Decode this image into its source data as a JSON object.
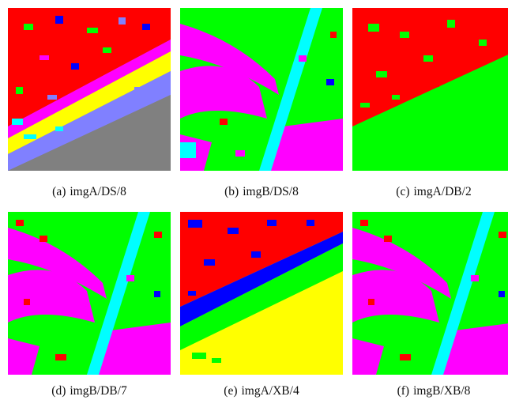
{
  "figure": {
    "panels": [
      {
        "label": "(a)",
        "caption": "imgA/DS/8"
      },
      {
        "label": "(b)",
        "caption": "imgB/DS/8"
      },
      {
        "label": "(c)",
        "caption": "imgA/DB/2"
      },
      {
        "label": "(d)",
        "caption": "imgB/DB/7"
      },
      {
        "label": "(e)",
        "caption": "imgA/XB/4"
      },
      {
        "label": "(f)",
        "caption": "imgB/XB/8"
      }
    ]
  },
  "colors": {
    "red": "#ff0000",
    "green": "#00ff00",
    "blue": "#0000ff",
    "magenta": "#ff00ff",
    "cyan": "#00ffff",
    "yellow": "#ffff00",
    "gray": "#808080",
    "lavender": "#8080ff"
  }
}
